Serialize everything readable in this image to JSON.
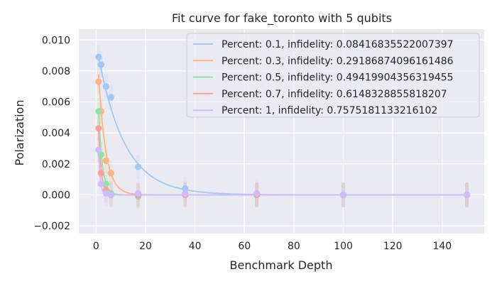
{
  "chart_data": {
    "type": "scatter",
    "title": "Fit curve for fake_toronto with 5 qubits",
    "xlabel": "Benchmark Depth",
    "ylabel": "Polarization",
    "xlim": [
      -7,
      157
    ],
    "ylim": [
      -0.0025,
      0.0107
    ],
    "xticks": [
      0,
      20,
      40,
      60,
      80,
      100,
      120,
      140
    ],
    "xtick_labels": [
      "0",
      "20",
      "40",
      "60",
      "80",
      "100",
      "120",
      "140"
    ],
    "yticks": [
      -0.002,
      0.0,
      0.002,
      0.004,
      0.006,
      0.008,
      0.01
    ],
    "ytick_labels": [
      "−0.002",
      "0.000",
      "0.002",
      "0.004",
      "0.006",
      "0.008",
      "0.010"
    ],
    "grid": true,
    "legend_position": "top-right",
    "background": "#eaeaf2",
    "series": [
      {
        "name": "Percent: 0.1, infidelity: 0.08416835522007397",
        "color": "#a1c9f4",
        "x": [
          1,
          2,
          4,
          6,
          17,
          36,
          65,
          100,
          150
        ],
        "y": [
          0.0089,
          0.0084,
          0.007,
          0.0063,
          0.0018,
          0.0004,
          0.0,
          0.0,
          0.0
        ],
        "fit": {
          "a": 0.0098,
          "decay": 0.0937
        }
      },
      {
        "name": "Percent: 0.3, infidelity: 0.29186874096161486",
        "color": "#ffb482",
        "x": [
          1,
          2,
          4,
          6,
          17,
          36,
          65,
          100,
          150
        ],
        "y": [
          0.0073,
          0.0054,
          0.0022,
          0.0014,
          0.0,
          0.0,
          0.0,
          0.0,
          0.0
        ],
        "fit": {
          "a": 0.011,
          "decay": 0.345
        }
      },
      {
        "name": "Percent: 0.5, infidelity: 0.49419904356319455",
        "color": "#8de5a1",
        "x": [
          1,
          2,
          4,
          6,
          17,
          36,
          65,
          100,
          150
        ],
        "y": [
          0.0054,
          0.0026,
          0.0007,
          0.0001,
          -0.0001,
          0.0,
          0.0,
          0.0,
          0.0
        ],
        "fit": {
          "a": 0.011,
          "decay": 0.6815
        }
      },
      {
        "name": "Percent: 0.7, infidelity: 0.6148328855818207",
        "color": "#ff9f9b",
        "x": [
          1,
          2,
          4,
          6,
          17,
          36,
          65,
          100,
          150
        ],
        "y": [
          0.0043,
          0.0014,
          0.0003,
          0.0,
          0.0,
          0.0,
          0.0,
          0.0,
          0.0
        ],
        "fit": {
          "a": 0.011,
          "decay": 0.9538
        }
      },
      {
        "name": "Percent: 1, infidelity: 0.7575181133216102",
        "color": "#d0bbff",
        "x": [
          1,
          2,
          4,
          6,
          17,
          36,
          65,
          100,
          150
        ],
        "y": [
          0.0029,
          0.0007,
          0.0001,
          0.0,
          0.0001,
          0.0001,
          0.0001,
          0.0,
          -0.0
        ],
        "fit": {
          "a": 0.011,
          "decay": 1.42
        }
      }
    ]
  }
}
